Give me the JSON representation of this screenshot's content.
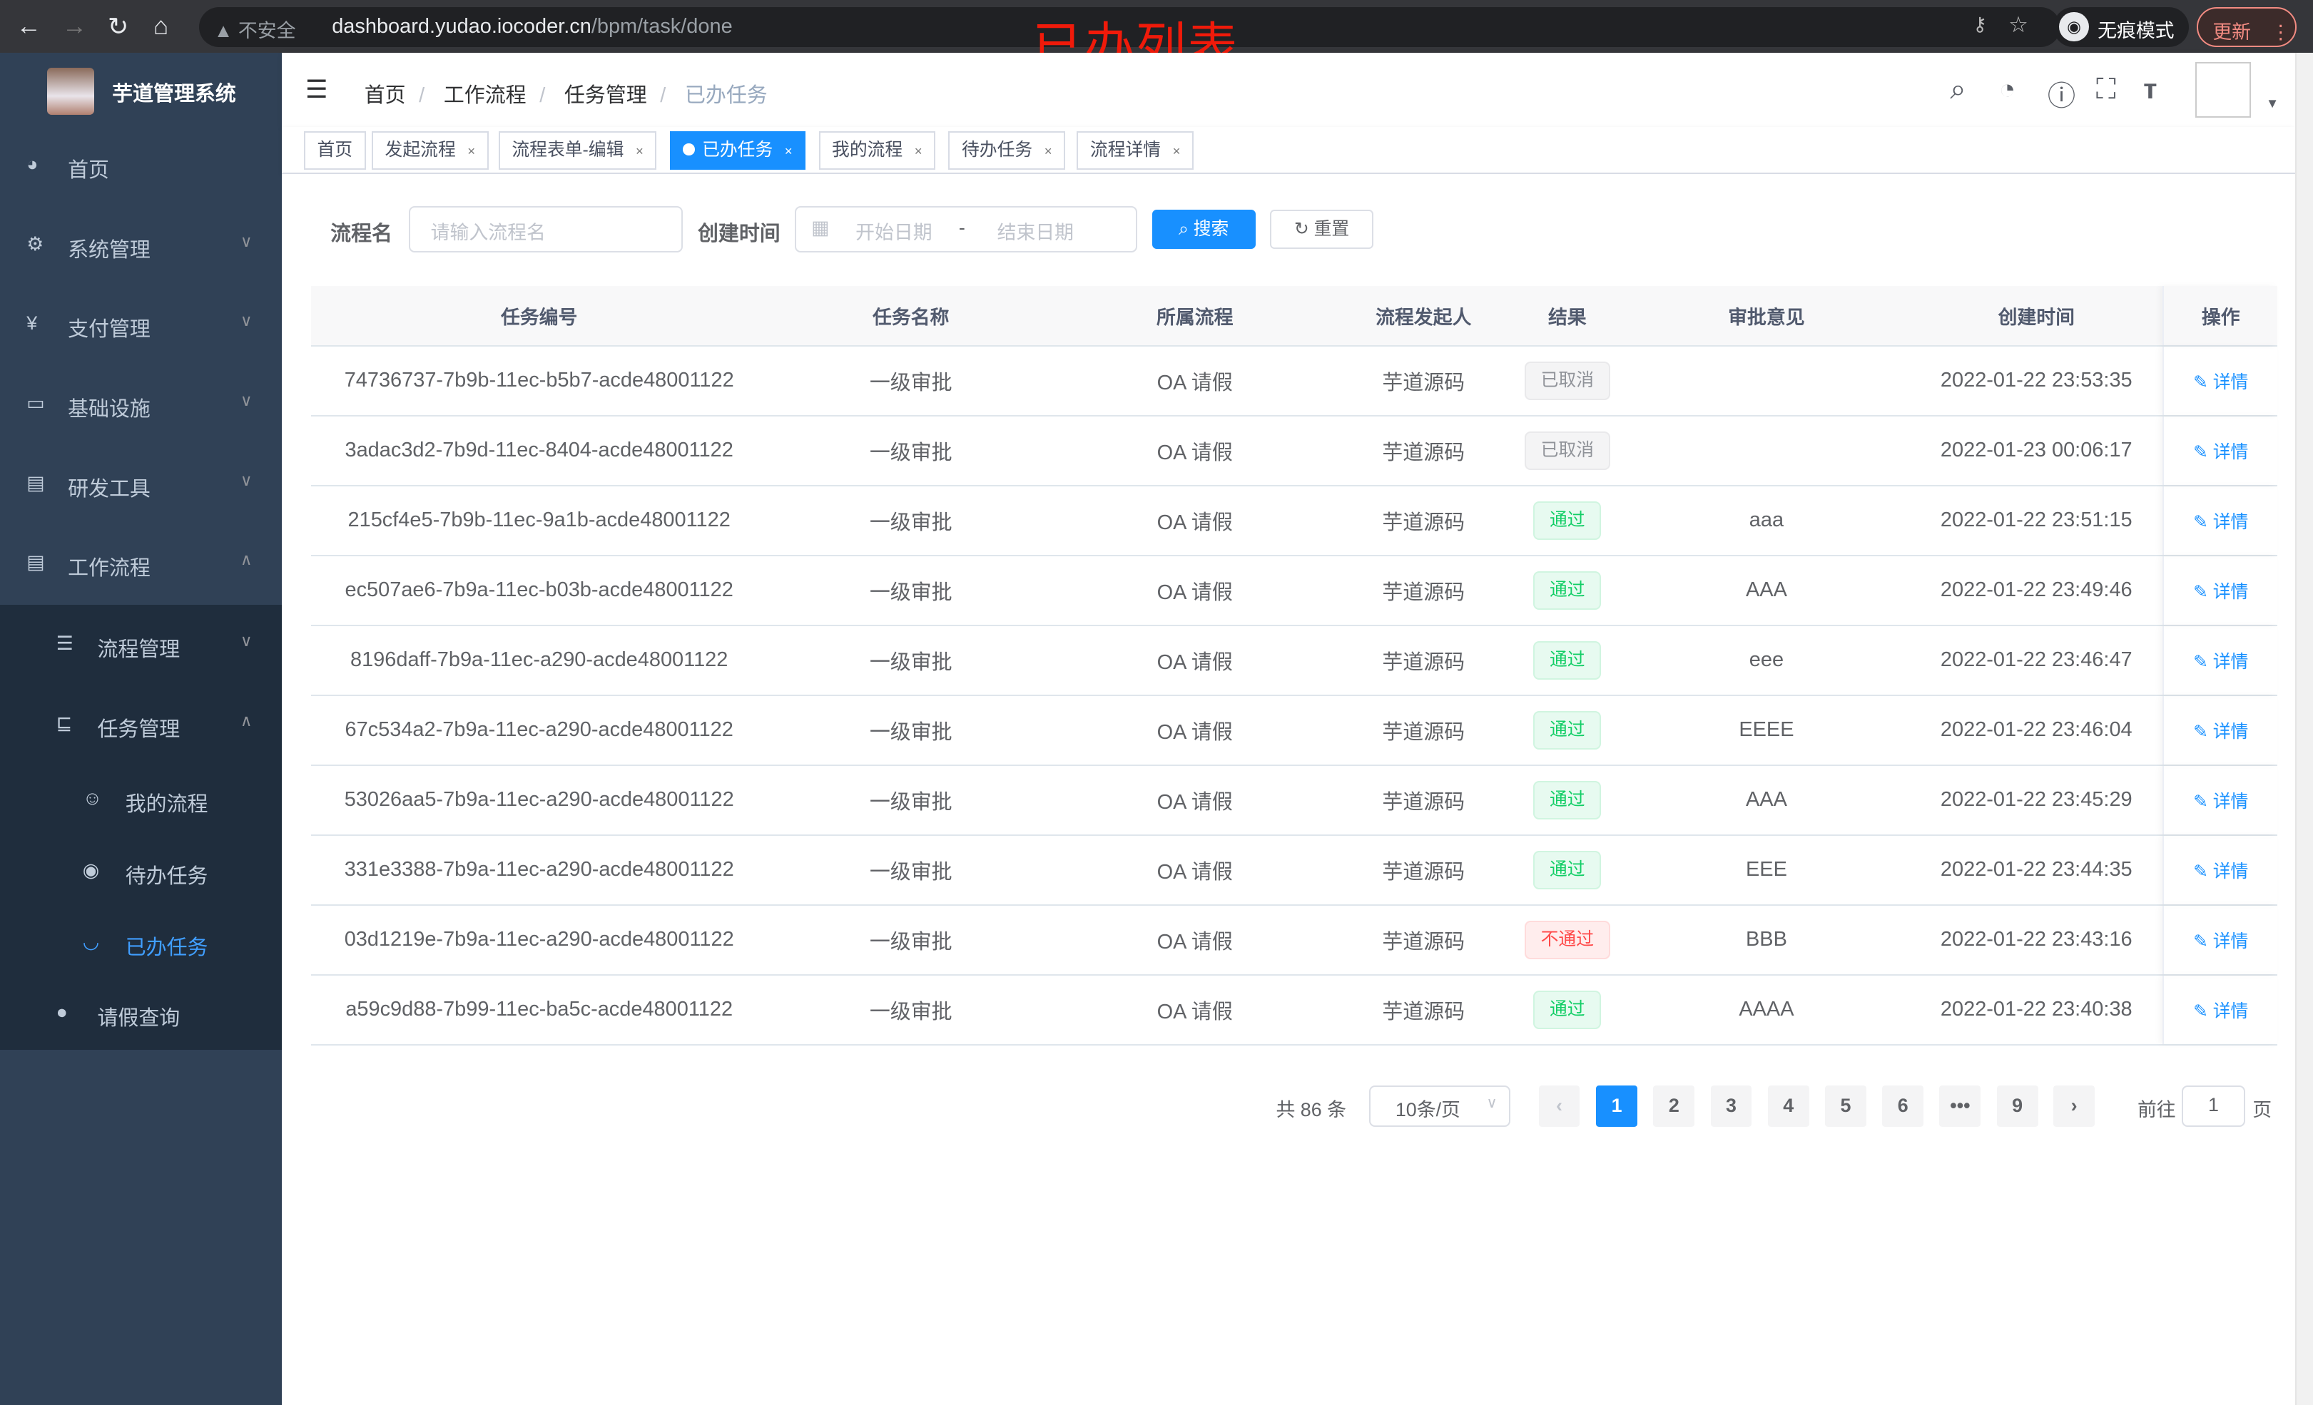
{
  "browser": {
    "insecure": "不安全",
    "url_host": "dashboard.yudao.iocoder.cn",
    "url_path": "/bpm/task/done",
    "incognito": "无痕模式",
    "update": "更新"
  },
  "overlay_title": "已办列表",
  "sidebar": {
    "title": "芋道管理系统",
    "items": [
      {
        "label": "首页",
        "icon": "dashboard-icon"
      },
      {
        "label": "系统管理",
        "icon": "gear-icon"
      },
      {
        "label": "支付管理",
        "icon": "yen-icon"
      },
      {
        "label": "基础设施",
        "icon": "monitor-icon"
      },
      {
        "label": "研发工具",
        "icon": "toolbox-icon"
      },
      {
        "label": "工作流程",
        "icon": "toolbox-icon"
      },
      {
        "label": "流程管理",
        "icon": "list-icon"
      },
      {
        "label": "任务管理",
        "icon": "tree-icon"
      },
      {
        "label": "我的流程",
        "icon": "people-icon"
      },
      {
        "label": "待办任务",
        "icon": "eye-icon"
      },
      {
        "label": "已办任务",
        "icon": "eye-closed-icon"
      },
      {
        "label": "请假查询",
        "icon": "user-icon"
      }
    ],
    "active_color": "#409eff"
  },
  "breadcrumb": [
    "首页",
    "工作流程",
    "任务管理",
    "已办任务"
  ],
  "tags": [
    "首页",
    "发起流程",
    "流程表单-编辑",
    "已办任务",
    "我的流程",
    "待办任务",
    "流程详情"
  ],
  "search": {
    "name_label": "流程名",
    "name_placeholder": "请输入流程名",
    "time_label": "创建时间",
    "start_placeholder": "开始日期",
    "range_sep": "-",
    "end_placeholder": "结束日期",
    "search_btn": "搜索",
    "reset_btn": "重置"
  },
  "table": {
    "headers": [
      "任务编号",
      "任务名称",
      "所属流程",
      "流程发起人",
      "结果",
      "审批意见",
      "创建时间",
      "操作"
    ],
    "action": "详情",
    "rows": [
      {
        "id": "74736737-7b9b-11ec-b5b7-acde48001122",
        "name": "一级审批",
        "process": "OA 请假",
        "starter": "芋道源码",
        "result": "已取消",
        "status": "cancel",
        "comment": "",
        "time": "2022-01-22 23:53:35"
      },
      {
        "id": "3adac3d2-7b9d-11ec-8404-acde48001122",
        "name": "一级审批",
        "process": "OA 请假",
        "starter": "芋道源码",
        "result": "已取消",
        "status": "cancel",
        "comment": "",
        "time": "2022-01-23 00:06:17"
      },
      {
        "id": "215cf4e5-7b9b-11ec-9a1b-acde48001122",
        "name": "一级审批",
        "process": "OA 请假",
        "starter": "芋道源码",
        "result": "通过",
        "status": "pass",
        "comment": "aaa",
        "time": "2022-01-22 23:51:15"
      },
      {
        "id": "ec507ae6-7b9a-11ec-b03b-acde48001122",
        "name": "一级审批",
        "process": "OA 请假",
        "starter": "芋道源码",
        "result": "通过",
        "status": "pass",
        "comment": "AAA",
        "time": "2022-01-22 23:49:46"
      },
      {
        "id": "8196daff-7b9a-11ec-a290-acde48001122",
        "name": "一级审批",
        "process": "OA 请假",
        "starter": "芋道源码",
        "result": "通过",
        "status": "pass",
        "comment": "eee",
        "time": "2022-01-22 23:46:47"
      },
      {
        "id": "67c534a2-7b9a-11ec-a290-acde48001122",
        "name": "一级审批",
        "process": "OA 请假",
        "starter": "芋道源码",
        "result": "通过",
        "status": "pass",
        "comment": "EEEE",
        "time": "2022-01-22 23:46:04"
      },
      {
        "id": "53026aa5-7b9a-11ec-a290-acde48001122",
        "name": "一级审批",
        "process": "OA 请假",
        "starter": "芋道源码",
        "result": "通过",
        "status": "pass",
        "comment": "AAA",
        "time": "2022-01-22 23:45:29"
      },
      {
        "id": "331e3388-7b9a-11ec-a290-acde48001122",
        "name": "一级审批",
        "process": "OA 请假",
        "starter": "芋道源码",
        "result": "通过",
        "status": "pass",
        "comment": "EEE",
        "time": "2022-01-22 23:44:35"
      },
      {
        "id": "03d1219e-7b9a-11ec-a290-acde48001122",
        "name": "一级审批",
        "process": "OA 请假",
        "starter": "芋道源码",
        "result": "不通过",
        "status": "reject",
        "comment": "BBB",
        "time": "2022-01-22 23:43:16"
      },
      {
        "id": "a59c9d88-7b99-11ec-ba5c-acde48001122",
        "name": "一级审批",
        "process": "OA 请假",
        "starter": "芋道源码",
        "result": "通过",
        "status": "pass",
        "comment": "AAAA",
        "time": "2022-01-22 23:40:38"
      }
    ]
  },
  "pagination": {
    "total": "共 86 条",
    "page_size": "10条/页",
    "pages": [
      "1",
      "2",
      "3",
      "4",
      "5",
      "6",
      "•••",
      "9"
    ],
    "current": "1",
    "goto_label": "前往",
    "goto_value": "1",
    "page_unit": "页"
  }
}
